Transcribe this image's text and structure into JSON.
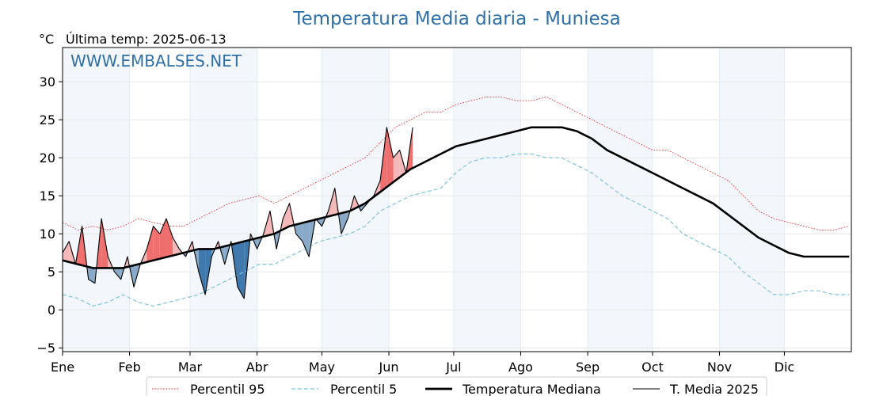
{
  "chart_data": {
    "type": "line",
    "title": "Temperatura Media diaria - Muniesa",
    "unit_label": "°C",
    "last_temp_label": "Última temp: 2025-06-13",
    "watermark": "WWW.EMBALSES.NET",
    "ylim": [
      -5.5,
      34.5
    ],
    "yticks": [
      -5,
      0,
      5,
      10,
      15,
      20,
      25,
      30
    ],
    "ytick_labels": [
      "−5",
      "0",
      "5",
      "10",
      "15",
      "20",
      "25",
      "30"
    ],
    "xlim": [
      1,
      366
    ],
    "months": [
      {
        "label": "Ene",
        "start": 1
      },
      {
        "label": "Feb",
        "start": 32
      },
      {
        "label": "Mar",
        "start": 60
      },
      {
        "label": "Abr",
        "start": 91
      },
      {
        "label": "May",
        "start": 121
      },
      {
        "label": "Jun",
        "start": 152
      },
      {
        "label": "Jul",
        "start": 182
      },
      {
        "label": "Ago",
        "start": 213
      },
      {
        "label": "Sep",
        "start": 244
      },
      {
        "label": "Oct",
        "start": 274
      },
      {
        "label": "Nov",
        "start": 305
      },
      {
        "label": "Dic",
        "start": 335
      }
    ],
    "shaded_months": [
      0,
      2,
      4,
      6,
      8,
      10
    ],
    "grid": true,
    "legend_position": "bottom",
    "series": [
      {
        "name": "Percentil 95",
        "color": "#ff2020",
        "style": "dotted",
        "x": [
          1,
          8,
          15,
          22,
          29,
          36,
          43,
          50,
          57,
          64,
          71,
          78,
          85,
          92,
          99,
          106,
          113,
          120,
          127,
          134,
          141,
          148,
          155,
          162,
          169,
          176,
          183,
          190,
          197,
          204,
          211,
          218,
          225,
          232,
          239,
          246,
          253,
          260,
          267,
          274,
          281,
          288,
          295,
          302,
          309,
          316,
          323,
          330,
          337,
          344,
          351,
          358,
          365
        ],
        "y": [
          11.5,
          10.5,
          11,
          10.5,
          11,
          12,
          11.5,
          11,
          11,
          12,
          13,
          14,
          14.5,
          15,
          14,
          15,
          16,
          17,
          18,
          19,
          20,
          22,
          24,
          25,
          26,
          26,
          27,
          27.5,
          28,
          28,
          27.5,
          27.5,
          28,
          27,
          26,
          25,
          24,
          23,
          22,
          21,
          21,
          20,
          19,
          18,
          17,
          15,
          13,
          12,
          11.5,
          11,
          10.5,
          10.5,
          11
        ]
      },
      {
        "name": "Percentil 5",
        "color": "#7fc4dc",
        "style": "dashed",
        "x": [
          1,
          8,
          15,
          22,
          29,
          36,
          43,
          50,
          57,
          64,
          71,
          78,
          85,
          92,
          99,
          106,
          113,
          120,
          127,
          134,
          141,
          148,
          155,
          162,
          169,
          176,
          183,
          190,
          197,
          204,
          211,
          218,
          225,
          232,
          239,
          246,
          253,
          260,
          267,
          274,
          281,
          288,
          295,
          302,
          309,
          316,
          323,
          330,
          337,
          344,
          351,
          358,
          365
        ],
        "y": [
          2,
          1.5,
          0.5,
          1,
          2,
          1,
          0.5,
          1,
          1.5,
          2,
          3,
          4,
          5,
          6,
          6,
          7,
          8,
          9,
          9.5,
          10,
          11,
          13,
          14,
          15,
          15.5,
          16,
          18,
          19.5,
          20,
          20,
          20.5,
          20.5,
          20,
          20,
          19,
          18,
          16.5,
          15,
          14,
          13,
          12,
          10,
          9,
          8,
          7,
          5,
          3.5,
          2,
          2,
          2.5,
          2.5,
          2,
          2
        ]
      },
      {
        "name": "Temperatura Mediana",
        "color": "#000000",
        "style": "solid-thick",
        "x": [
          1,
          8,
          15,
          22,
          29,
          36,
          43,
          50,
          57,
          64,
          71,
          78,
          85,
          92,
          99,
          106,
          113,
          120,
          127,
          134,
          141,
          148,
          155,
          162,
          169,
          176,
          183,
          190,
          197,
          204,
          211,
          218,
          225,
          232,
          239,
          246,
          253,
          260,
          267,
          274,
          281,
          288,
          295,
          302,
          309,
          316,
          323,
          330,
          337,
          344,
          351,
          358,
          365
        ],
        "y": [
          6.5,
          6,
          5.5,
          5.5,
          5.5,
          6,
          6.5,
          7,
          7.5,
          8,
          8,
          8.5,
          9,
          9.5,
          10,
          11,
          11.5,
          12,
          12.5,
          13,
          14,
          15.5,
          17,
          18.5,
          19.5,
          20.5,
          21.5,
          22,
          22.5,
          23,
          23.5,
          24,
          24,
          24,
          23.5,
          22.5,
          21,
          20,
          19,
          18,
          17,
          16,
          15,
          14,
          12.5,
          11,
          9.5,
          8.5,
          7.5,
          7,
          7,
          7,
          7
        ]
      },
      {
        "name": "T. Media 2025",
        "color": "#000000",
        "style": "solid-thin",
        "x": [
          1,
          4,
          7,
          10,
          13,
          16,
          19,
          22,
          25,
          28,
          31,
          34,
          37,
          40,
          43,
          46,
          49,
          52,
          55,
          58,
          61,
          64,
          67,
          70,
          73,
          76,
          79,
          82,
          85,
          88,
          91,
          94,
          97,
          100,
          103,
          106,
          109,
          112,
          115,
          118,
          121,
          124,
          127,
          130,
          133,
          136,
          139,
          142,
          145,
          148,
          151,
          154,
          157,
          160,
          163
        ],
        "y": [
          7.5,
          9,
          6,
          11,
          4,
          3.5,
          12,
          7,
          5,
          4,
          7,
          3,
          6,
          8,
          11,
          10,
          12,
          9.5,
          8,
          7,
          9,
          5,
          2,
          7,
          9,
          6,
          9,
          3,
          1.5,
          10,
          8,
          10,
          13,
          8,
          12,
          14,
          10,
          9,
          7,
          12,
          11,
          13,
          16,
          10,
          12,
          15,
          13,
          14,
          15,
          17,
          24,
          20,
          21,
          18,
          24
        ]
      }
    ]
  }
}
